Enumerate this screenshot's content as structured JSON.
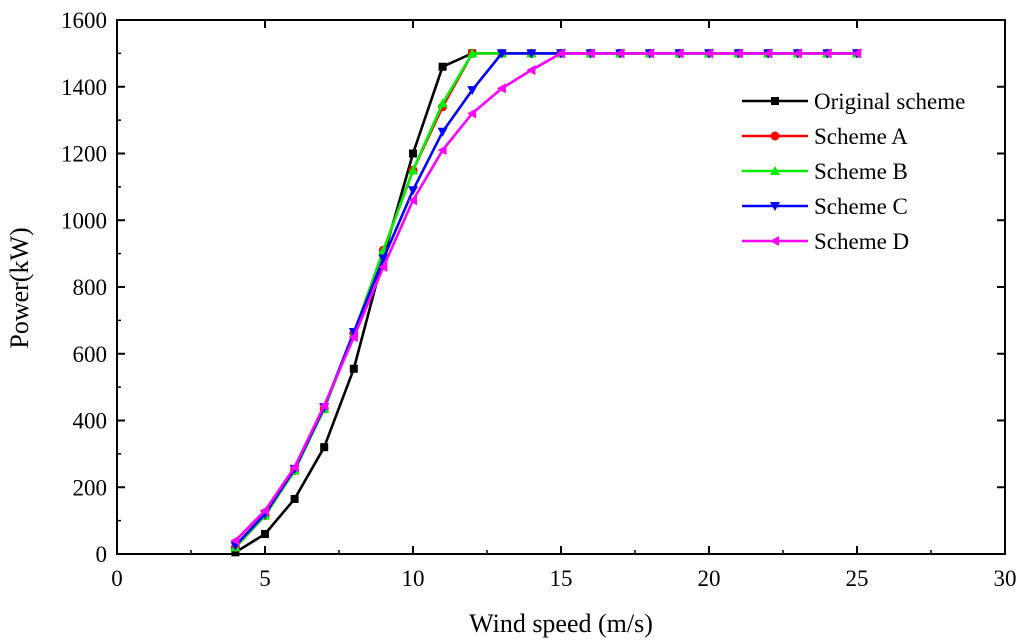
{
  "chart_data": {
    "type": "line",
    "title": "",
    "xlabel": "Wind speed (m/s)",
    "ylabel": "Power(kW)",
    "xlim": [
      0,
      30
    ],
    "ylim": [
      0,
      1600
    ],
    "xticks": [
      0,
      5,
      10,
      15,
      20,
      25,
      30
    ],
    "yticks": [
      0,
      200,
      400,
      600,
      800,
      1000,
      1200,
      1400,
      1600
    ],
    "grid": false,
    "legend_position": "right",
    "x": [
      4,
      5,
      6,
      7,
      8,
      9,
      10,
      11,
      12,
      13,
      14,
      15,
      16,
      17,
      18,
      19,
      20,
      21,
      22,
      23,
      24,
      25
    ],
    "series": [
      {
        "name": "Original scheme",
        "color": "#000000",
        "marker": "square",
        "values": [
          5,
          60,
          165,
          320,
          555,
          890,
          1200,
          1460,
          1500,
          1500,
          1500,
          1500,
          1500,
          1500,
          1500,
          1500,
          1500,
          1500,
          1500,
          1500,
          1500,
          1500
        ]
      },
      {
        "name": "Scheme A",
        "color": "#ff0000",
        "marker": "circle",
        "values": [
          20,
          115,
          250,
          435,
          660,
          910,
          1150,
          1340,
          1500,
          1500,
          1500,
          1500,
          1500,
          1500,
          1500,
          1500,
          1500,
          1500,
          1500,
          1500,
          1500,
          1500
        ]
      },
      {
        "name": "Scheme B",
        "color": "#00ee00",
        "marker": "triangle-up",
        "values": [
          20,
          115,
          250,
          435,
          660,
          910,
          1150,
          1350,
          1500,
          1500,
          1500,
          1500,
          1500,
          1500,
          1500,
          1500,
          1500,
          1500,
          1500,
          1500,
          1500,
          1500
        ]
      },
      {
        "name": "Scheme C",
        "color": "#0000ff",
        "marker": "triangle-down",
        "values": [
          25,
          120,
          255,
          440,
          665,
          885,
          1090,
          1265,
          1390,
          1500,
          1500,
          1500,
          1500,
          1500,
          1500,
          1500,
          1500,
          1500,
          1500,
          1500,
          1500,
          1500
        ]
      },
      {
        "name": "Scheme D",
        "color": "#ff00ff",
        "marker": "triangle-left",
        "values": [
          40,
          130,
          260,
          445,
          650,
          860,
          1060,
          1210,
          1320,
          1395,
          1450,
          1500,
          1500,
          1500,
          1500,
          1500,
          1500,
          1500,
          1500,
          1500,
          1500,
          1500
        ]
      }
    ]
  }
}
